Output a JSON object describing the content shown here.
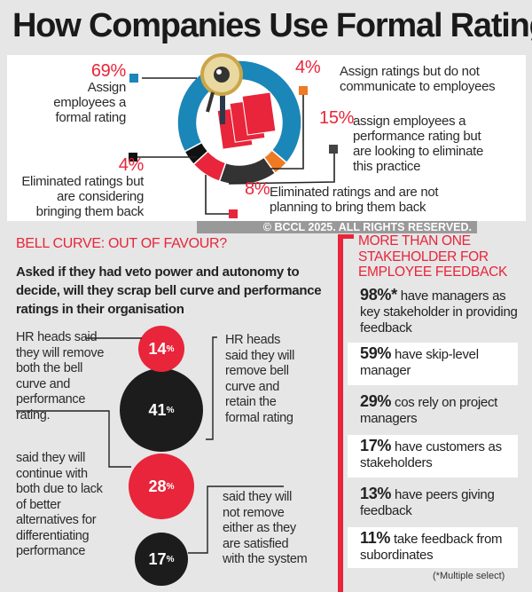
{
  "title": "How Companies Use Formal Rating",
  "chart_data": {
    "type": "pie",
    "title": "How Companies Use Formal Rating",
    "slices": [
      {
        "value": 69,
        "label": "69%",
        "text": "Assign employees a formal rating",
        "color": "#1b86b8"
      },
      {
        "value": 4,
        "label": "4%",
        "text": "Assign ratings but do not communicate to employees",
        "color": "#ef7a22"
      },
      {
        "value": 15,
        "label": "15%",
        "text": "assign employees a performance rating but are looking to eliminate this practice",
        "color": "#333333"
      },
      {
        "value": 8,
        "label": "8%",
        "text": "Eliminated ratings and are not planning to bring them back",
        "color": "#e8253a"
      },
      {
        "value": 4,
        "label": "4%",
        "text": "Eliminated ratings but are considering bringing them back",
        "color": "#111111"
      }
    ]
  },
  "bell": {
    "heading": "BELL CURVE: OUT OF FAVOUR?",
    "question": "Asked if they had veto power and autonomy to decide, will they scrap bell curve and performance ratings in their organisation",
    "items": [
      {
        "value": "14",
        "text": "HR heads said they will remove both the bell curve and performance rating."
      },
      {
        "value": "41",
        "text": "HR heads said they will remove bell curve and retain the formal rating"
      },
      {
        "value": "28",
        "text": "said they will continue with both due to lack of better alternatives for differentiating performance"
      },
      {
        "value": "17",
        "text": "said they will not remove either as they are satisfied with the system"
      }
    ],
    "pct_sign": "%"
  },
  "stakeholders": {
    "heading": "MORE THAN ONE STAKEHOLDER FOR EMPLOYEE FEEDBACK",
    "items": [
      {
        "value": "98%*",
        "text": "have managers as key stakeholder in providing feedback"
      },
      {
        "value": "59%",
        "text": "have skip-level manager"
      },
      {
        "value": "29%",
        "text": "cos rely on project managers"
      },
      {
        "value": "17%",
        "text": "have customers as stakeholders"
      },
      {
        "value": "13%",
        "text": "have peers giving feedback"
      },
      {
        "value": "11%",
        "text": "take feedback from subordinates"
      }
    ],
    "footnote": "(*Multiple select)"
  },
  "watermark": "© BCCL 2025. ALL RIGHTS RESERVED."
}
